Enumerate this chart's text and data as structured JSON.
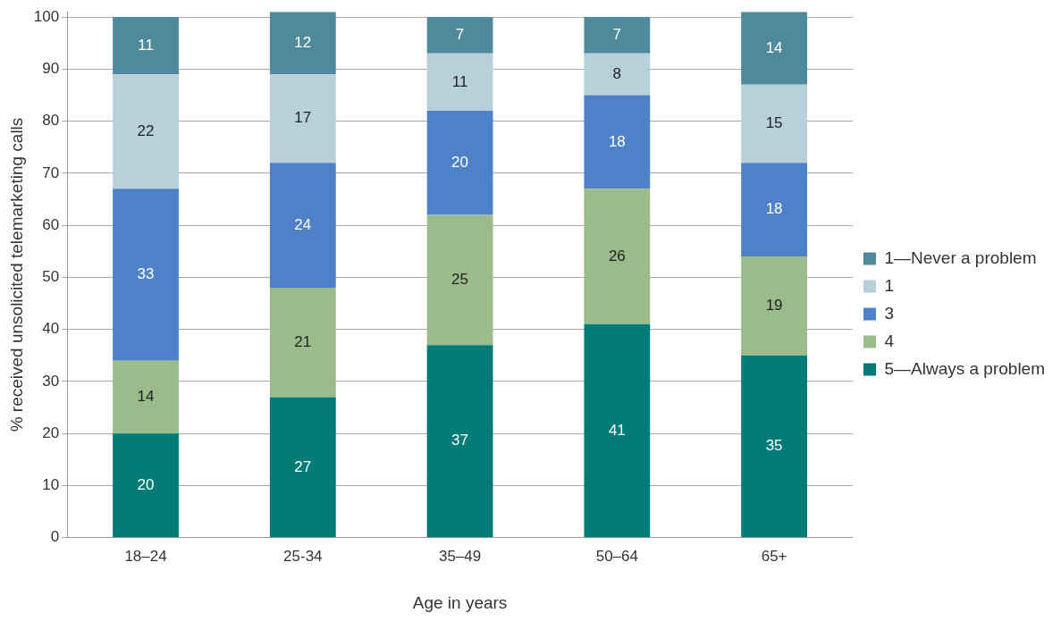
{
  "chart_data": {
    "type": "bar",
    "stacked": true,
    "xlabel": "Age in years",
    "ylabel": "% received unsolicited telemarketing calls",
    "categories": [
      "18–24",
      "25-34",
      "35–49",
      "50–64",
      "65+"
    ],
    "series": [
      {
        "name": "5—Always a problem",
        "color": "#007b78",
        "values": [
          20,
          27,
          37,
          41,
          35
        ]
      },
      {
        "name": "4",
        "color": "#9cbb8b",
        "values": [
          14,
          21,
          25,
          26,
          19
        ]
      },
      {
        "name": "3",
        "color": "#4f81c8",
        "values": [
          33,
          24,
          20,
          18,
          18
        ]
      },
      {
        "name": "1",
        "color": "#b8d0da",
        "values": [
          22,
          17,
          11,
          8,
          15
        ]
      },
      {
        "name": "1—Never a problem",
        "color": "#4f8a9c",
        "values": [
          11,
          12,
          7,
          7,
          14
        ]
      }
    ],
    "ylim": [
      0,
      101
    ],
    "yticks": [
      0,
      10,
      20,
      30,
      40,
      50,
      60,
      70,
      80,
      90,
      100
    ],
    "grid": "y",
    "legend": "right",
    "data_labels": true
  }
}
